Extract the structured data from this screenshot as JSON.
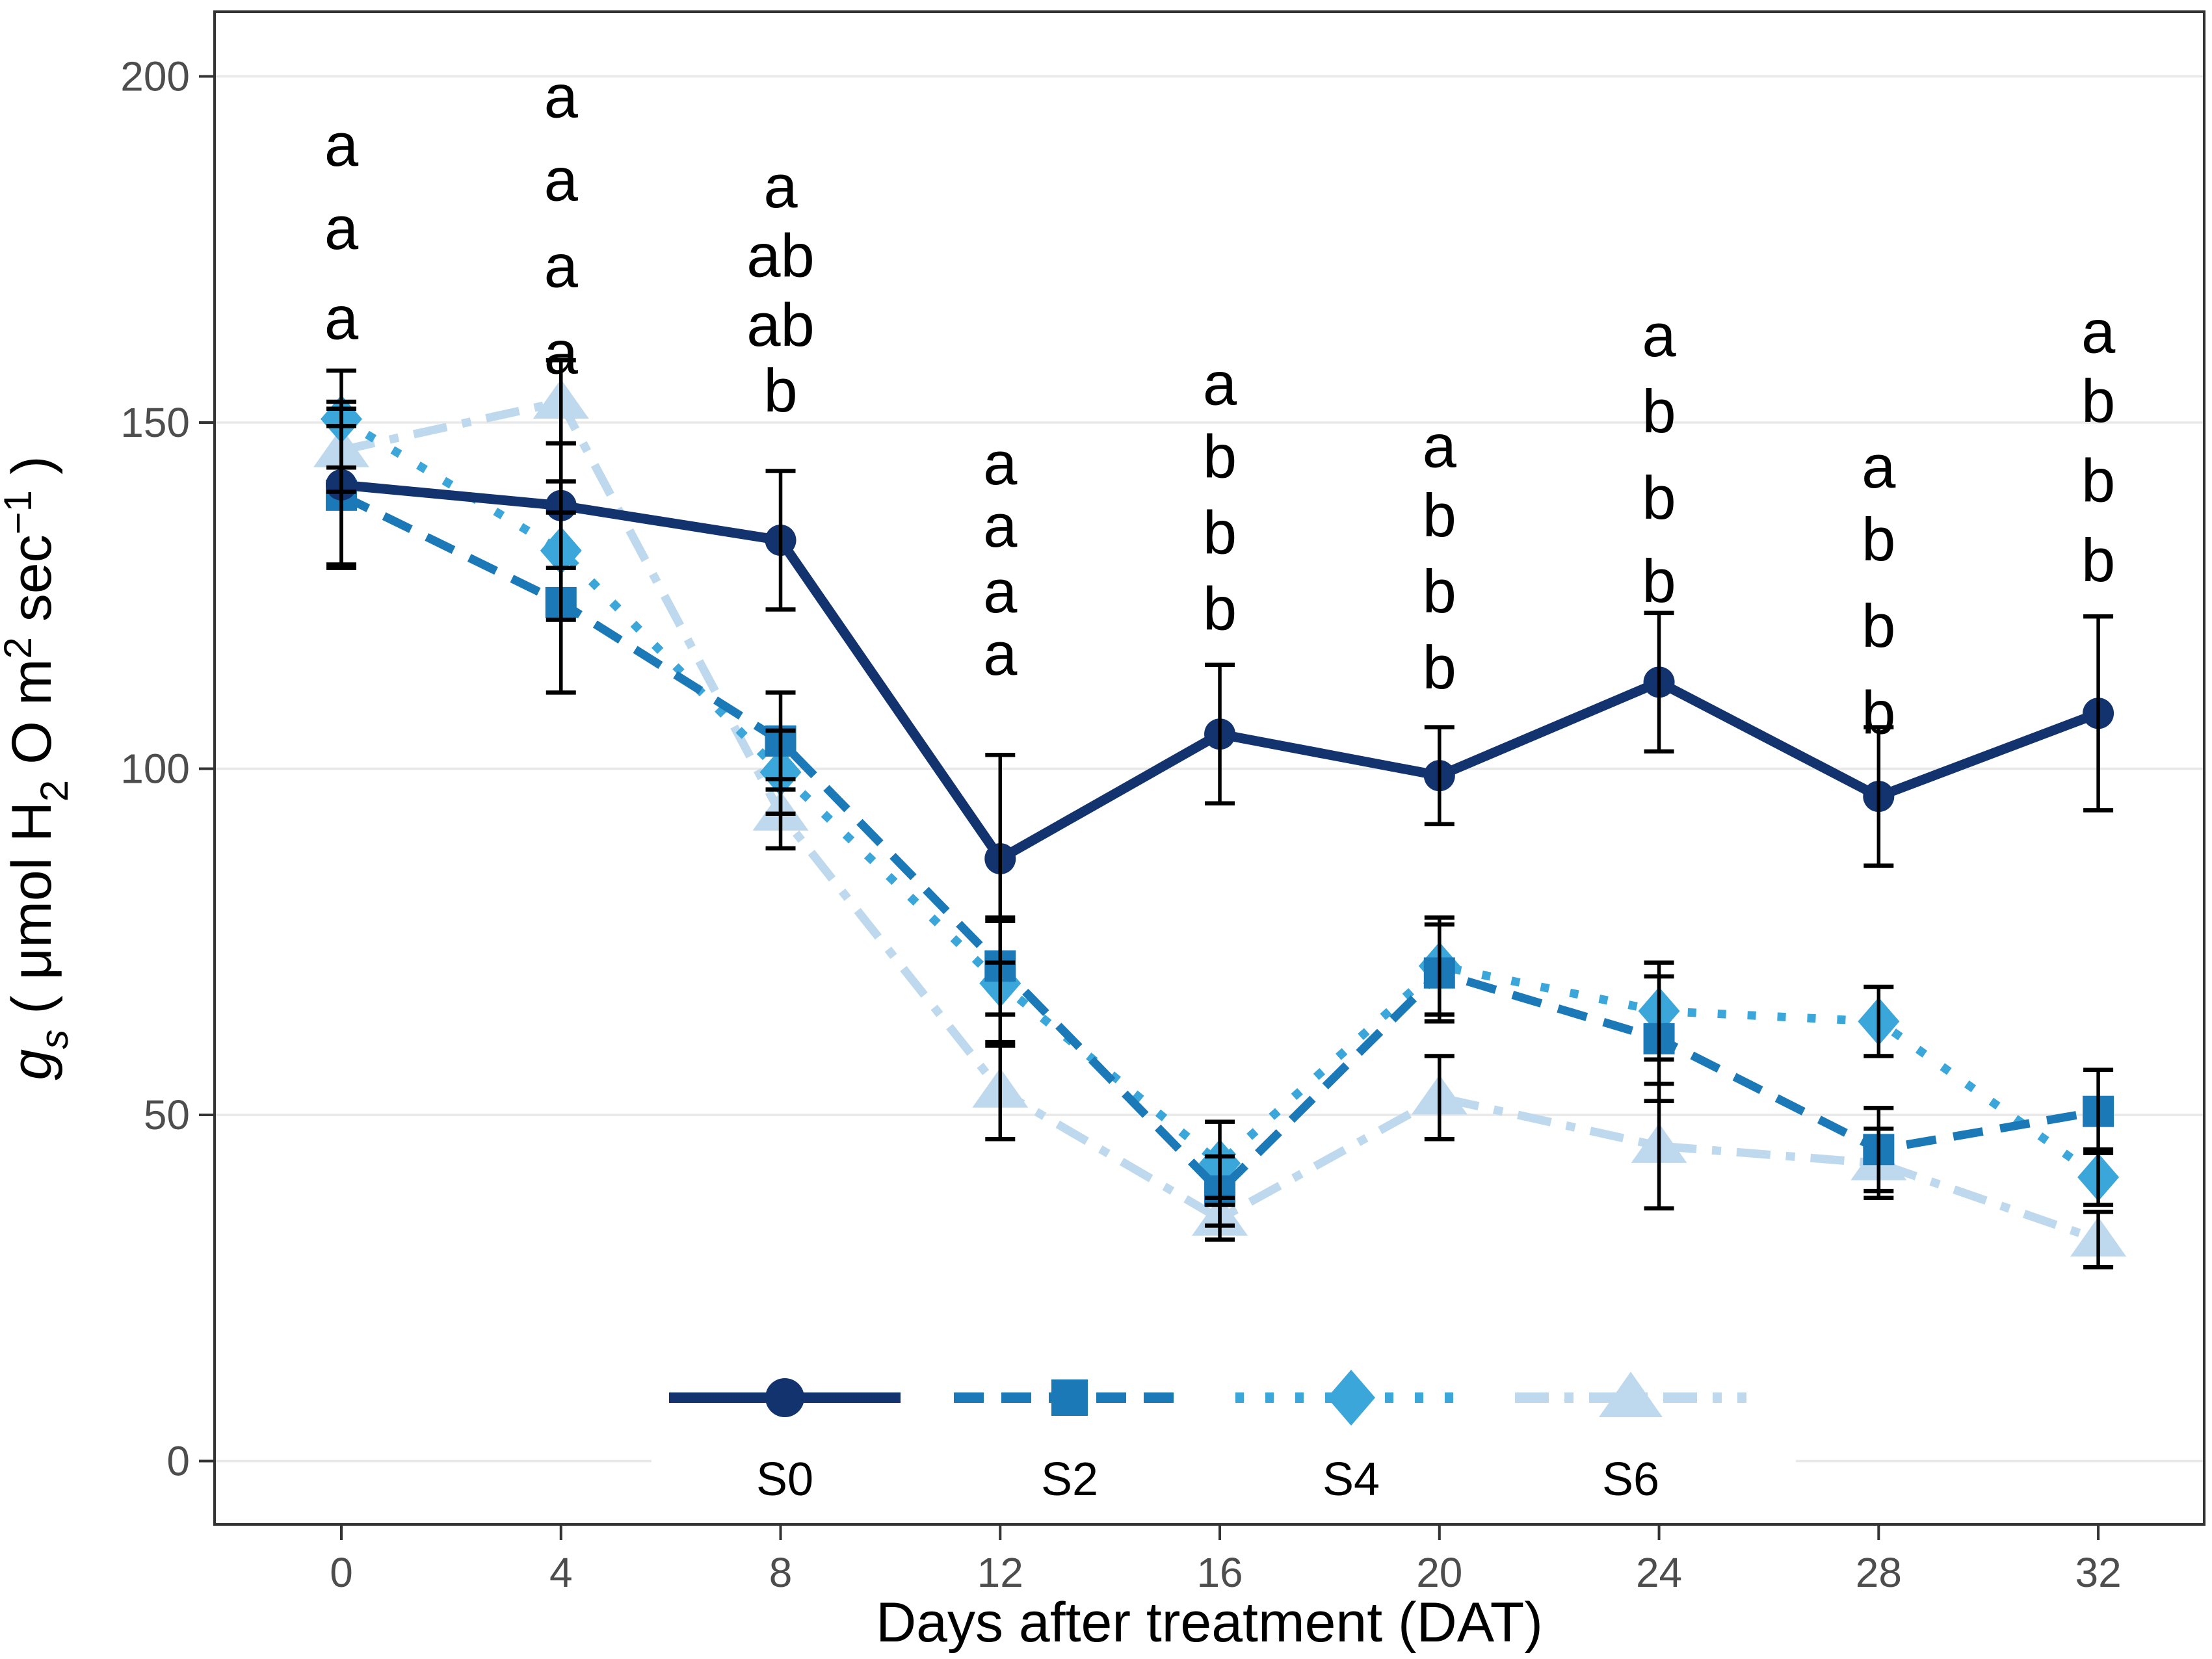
{
  "chart_data": {
    "type": "line",
    "title": "",
    "xlabel": "Days after treatment (DAT)",
    "ylabel_plain": "gs ( μmol H2 O m2 sec−1 )",
    "ylabel_segments": [
      {
        "t": "g",
        "style": "italic"
      },
      {
        "t": "s",
        "style": "italic-sub"
      },
      {
        "t": " ( μmol H",
        "style": "normal"
      },
      {
        "t": "2",
        "style": "sub"
      },
      {
        "t": " O m",
        "style": "normal"
      },
      {
        "t": "2",
        "style": "sup"
      },
      {
        "t": " sec",
        "style": "normal"
      },
      {
        "t": "−1",
        "style": "sup"
      },
      {
        "t": " )",
        "style": "normal"
      }
    ],
    "x": [
      0,
      4,
      8,
      12,
      16,
      20,
      24,
      28,
      32
    ],
    "x_ticks": [
      0,
      4,
      8,
      12,
      16,
      20,
      24,
      28,
      32
    ],
    "y_ticks": [
      0,
      50,
      100,
      150,
      200
    ],
    "xlim": [
      -2.3,
      33.9
    ],
    "ylim": [
      -9,
      209
    ],
    "grid": "major-horizontal",
    "legend_position": "bottom-center-inside",
    "colors": {
      "S0": "#12336e",
      "S2": "#1b79b8",
      "S4": "#3aa6d9",
      "S6": "#bed9ee",
      "error_bar": "#000000",
      "tick_label": "#4d4d4d",
      "axis_title": "#000000",
      "gridline": "#e8e8e8",
      "panel_border": "#333333",
      "letters": "#000000"
    },
    "series": [
      {
        "name": "S0",
        "marker": "circle",
        "line": "solid",
        "color": "#12336e",
        "values": [
          141,
          138,
          133,
          87,
          105,
          99,
          112.5,
          96,
          108
        ],
        "errors": [
          12,
          9,
          10,
          15,
          10,
          7,
          10,
          10,
          14
        ]
      },
      {
        "name": "S2",
        "marker": "square",
        "line": "dashed",
        "color": "#1b79b8",
        "values": [
          139.5,
          124,
          104,
          71.5,
          39,
          70.5,
          61,
          45,
          50.5
        ],
        "errors": [
          10,
          13,
          7,
          7,
          5,
          7,
          9,
          6,
          6
        ]
      },
      {
        "name": "S4",
        "marker": "diamond",
        "line": "dotted",
        "color": "#3aa6d9",
        "values": [
          150.5,
          131.5,
          99.5,
          69,
          43,
          71.5,
          65,
          63.5,
          41
        ],
        "errors": [
          7,
          10,
          6,
          9,
          6,
          7,
          7,
          5,
          4
        ]
      },
      {
        "name": "S6",
        "marker": "triangle",
        "line": "dashdot",
        "color": "#bed9ee",
        "values": [
          146,
          153,
          93.5,
          53.5,
          35,
          52.5,
          45.5,
          43,
          32
        ],
        "errors": [
          6,
          6,
          5,
          7,
          3,
          6,
          9,
          5,
          4
        ]
      }
    ],
    "significance_letters": [
      {
        "x": 0,
        "items": [
          {
            "t": "a",
            "v": 190
          },
          {
            "t": "a",
            "v": 178
          },
          {
            "t": "a",
            "v": 165
          }
        ]
      },
      {
        "x": 4,
        "items": [
          {
            "t": "a",
            "v": 197
          },
          {
            "t": "a",
            "v": 185
          },
          {
            "t": "a",
            "v": 172.5
          },
          {
            "t": "a",
            "v": 160
          }
        ]
      },
      {
        "x": 8,
        "items": [
          {
            "t": "a",
            "v": 184
          },
          {
            "t": "ab",
            "v": 174
          },
          {
            "t": "ab",
            "v": 164
          },
          {
            "t": "b",
            "v": 154.5
          }
        ]
      },
      {
        "x": 12,
        "items": [
          {
            "t": "a",
            "v": 144
          },
          {
            "t": "a",
            "v": 135
          },
          {
            "t": "a",
            "v": 125.5
          },
          {
            "t": "a",
            "v": 116.5
          }
        ]
      },
      {
        "x": 16,
        "items": [
          {
            "t": "a",
            "v": 155.5
          },
          {
            "t": "b",
            "v": 145
          },
          {
            "t": "b",
            "v": 134
          },
          {
            "t": "b",
            "v": 123
          }
        ]
      },
      {
        "x": 20,
        "items": [
          {
            "t": "a",
            "v": 146.5
          },
          {
            "t": "b",
            "v": 136.5
          },
          {
            "t": "b",
            "v": 125.5
          },
          {
            "t": "b",
            "v": 114.5
          }
        ]
      },
      {
        "x": 24,
        "items": [
          {
            "t": "a",
            "v": 162.5
          },
          {
            "t": "b",
            "v": 151.5
          },
          {
            "t": "b",
            "v": 139
          },
          {
            "t": "b",
            "v": 127
          }
        ]
      },
      {
        "x": 28,
        "items": [
          {
            "t": "a",
            "v": 143.5
          },
          {
            "t": "b",
            "v": 133
          },
          {
            "t": "b",
            "v": 120.5
          },
          {
            "t": "b",
            "v": 108
          }
        ]
      },
      {
        "x": 32,
        "items": [
          {
            "t": "a",
            "v": 163
          },
          {
            "t": "b",
            "v": 153
          },
          {
            "t": "b",
            "v": 141.5
          },
          {
            "t": "b",
            "v": 130
          }
        ]
      }
    ],
    "legend": {
      "labels": [
        "S0",
        "S2",
        "S4",
        "S6"
      ]
    }
  }
}
